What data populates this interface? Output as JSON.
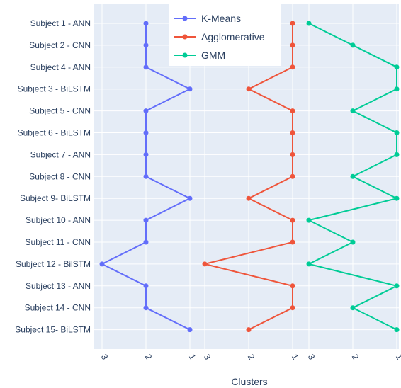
{
  "chart_data": {
    "type": "line",
    "xlabel": "Clusters",
    "categories": [
      "Subject 1 - ANN",
      "Subject 2 - CNN",
      "Subject 4 - ANN",
      "Subject 3 - BiLSTM",
      "Subject 5 - CNN",
      "Subject 6 - BiLSTM",
      "Subject 7 - ANN",
      "Subject 8 - CNN",
      "Subject 9- BiLSTM",
      "Subject 10 - ANN",
      "Subject 11 - CNN",
      "Subject 12 - BilSTM",
      "Subject 13 - ANN",
      "Subject 14 - CNN",
      "Subject 15- BiLSTM"
    ],
    "series": [
      {
        "name": "K-Means",
        "color": "#636efa",
        "xlim": [
          3,
          1
        ],
        "ticks": [
          "3",
          "2",
          "1"
        ],
        "values": [
          2,
          2,
          2,
          1,
          2,
          2,
          2,
          2,
          1,
          2,
          2,
          3,
          2,
          2,
          1
        ]
      },
      {
        "name": "Agglomerative",
        "color": "#ef553b",
        "xlim": [
          3,
          1
        ],
        "ticks": [
          "3",
          "2",
          "1"
        ],
        "values": [
          1,
          1,
          1,
          2,
          1,
          1,
          1,
          1,
          2,
          1,
          1,
          3,
          1,
          1,
          2
        ]
      },
      {
        "name": "GMM",
        "color": "#00cc96",
        "xlim": [
          3,
          1
        ],
        "ticks": [
          "3",
          "2",
          "1"
        ],
        "values": [
          3,
          2,
          1,
          1,
          2,
          1,
          1,
          2,
          1,
          3,
          2,
          3,
          1,
          2,
          1
        ]
      }
    ],
    "legend": "top-center",
    "grid": true
  }
}
